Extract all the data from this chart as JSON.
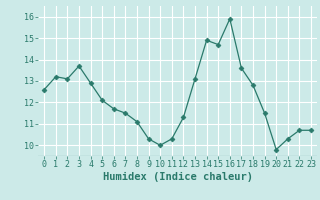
{
  "x": [
    0,
    1,
    2,
    3,
    4,
    5,
    6,
    7,
    8,
    9,
    10,
    11,
    12,
    13,
    14,
    15,
    16,
    17,
    18,
    19,
    20,
    21,
    22,
    23
  ],
  "y": [
    12.6,
    13.2,
    13.1,
    13.7,
    12.9,
    12.1,
    11.7,
    11.5,
    11.1,
    10.3,
    10.0,
    10.3,
    11.3,
    13.1,
    14.9,
    14.7,
    15.9,
    13.6,
    12.8,
    11.5,
    9.8,
    10.3,
    10.7,
    10.7
  ],
  "xlabel": "Humidex (Indice chaleur)",
  "ylim": [
    9.5,
    16.5
  ],
  "yticks": [
    10,
    11,
    12,
    13,
    14,
    15,
    16
  ],
  "xticks": [
    0,
    1,
    2,
    3,
    4,
    5,
    6,
    7,
    8,
    9,
    10,
    11,
    12,
    13,
    14,
    15,
    16,
    17,
    18,
    19,
    20,
    21,
    22,
    23
  ],
  "line_color": "#2a7a6b",
  "marker": "D",
  "marker_size": 2.5,
  "bg_color": "#cceae8",
  "grid_color": "#ffffff",
  "tick_color": "#2a7a6b",
  "label_color": "#2a7a6b",
  "xlabel_fontsize": 7.5,
  "tick_fontsize": 6.0,
  "xlim": [
    -0.5,
    23.5
  ]
}
